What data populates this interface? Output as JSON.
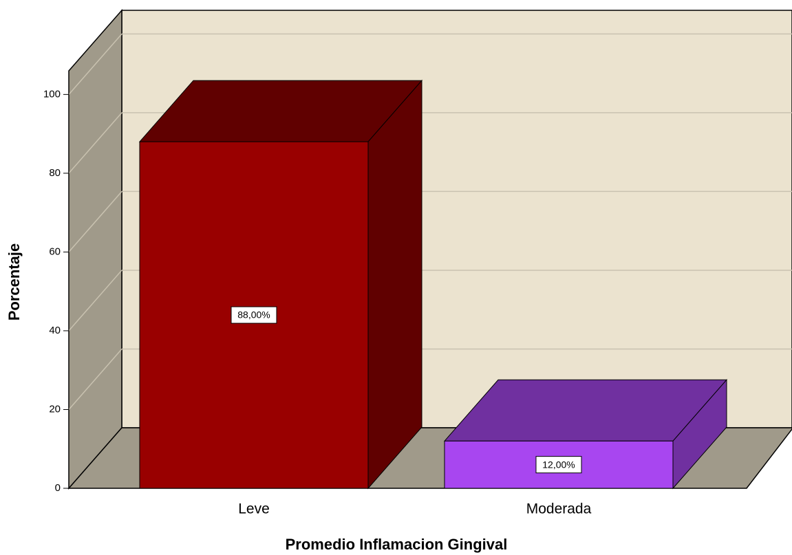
{
  "chart_data": {
    "type": "bar3d",
    "categories": [
      "Leve",
      "Moderada"
    ],
    "values": [
      88,
      12
    ],
    "value_labels": [
      "88,00%",
      "12,00%"
    ],
    "colors": [
      "#990000",
      "#a846f0"
    ],
    "shade_colors": [
      "#600000",
      "#7030a0"
    ],
    "xlabel": "Promedio Inflamacion Gingival",
    "ylabel": "Porcentaje",
    "ylim": [
      0,
      106
    ],
    "yticks": [
      0,
      20,
      40,
      60,
      80,
      100
    ],
    "grid": true
  }
}
